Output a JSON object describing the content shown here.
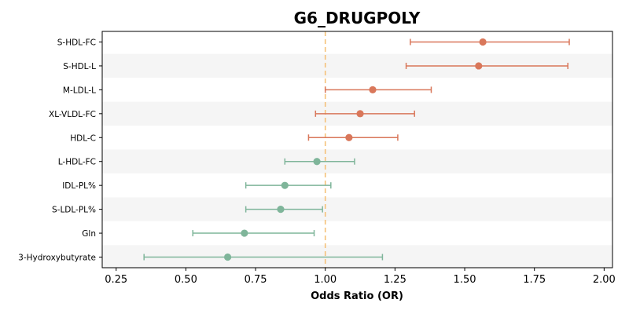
{
  "chart_data": {
    "type": "forest",
    "title": "G6_DRUGPOLY",
    "xlabel": "Odds Ratio (OR)",
    "ylabel": "",
    "xlim": [
      0.2,
      2.03
    ],
    "xticks": [
      0.25,
      0.5,
      0.75,
      1.0,
      1.25,
      1.5,
      1.75,
      2.0
    ],
    "xtick_labels": [
      "0.25",
      "0.50",
      "0.75",
      "1.00",
      "1.25",
      "1.50",
      "1.75",
      "2.00"
    ],
    "reference_line": 1.0,
    "grid": false,
    "band_colors": [
      "#ffffff",
      "#f5f5f5"
    ],
    "colors": {
      "above_one": "#d9775a",
      "below_one": "#7fb59a",
      "reference": "#f5c27a"
    },
    "rows": [
      {
        "label": "S-HDL-FC",
        "or": 1.565,
        "ci_low": 1.305,
        "ci_high": 1.875
      },
      {
        "label": "S-HDL-L",
        "or": 1.55,
        "ci_low": 1.29,
        "ci_high": 1.87
      },
      {
        "label": "M-LDL-L",
        "or": 1.17,
        "ci_low": 1.0,
        "ci_high": 1.38
      },
      {
        "label": "XL-VLDL-FC",
        "or": 1.125,
        "ci_low": 0.965,
        "ci_high": 1.32
      },
      {
        "label": "HDL-C",
        "or": 1.085,
        "ci_low": 0.94,
        "ci_high": 1.26
      },
      {
        "label": "L-HDL-FC",
        "or": 0.97,
        "ci_low": 0.855,
        "ci_high": 1.105
      },
      {
        "label": "IDL-PL%",
        "or": 0.855,
        "ci_low": 0.715,
        "ci_high": 1.02
      },
      {
        "label": "S-LDL-PL%",
        "or": 0.84,
        "ci_low": 0.715,
        "ci_high": 0.99
      },
      {
        "label": "Gln",
        "or": 0.71,
        "ci_low": 0.525,
        "ci_high": 0.96
      },
      {
        "label": "3-Hydroxybutyrate",
        "or": 0.65,
        "ci_low": 0.35,
        "ci_high": 1.205
      }
    ]
  }
}
